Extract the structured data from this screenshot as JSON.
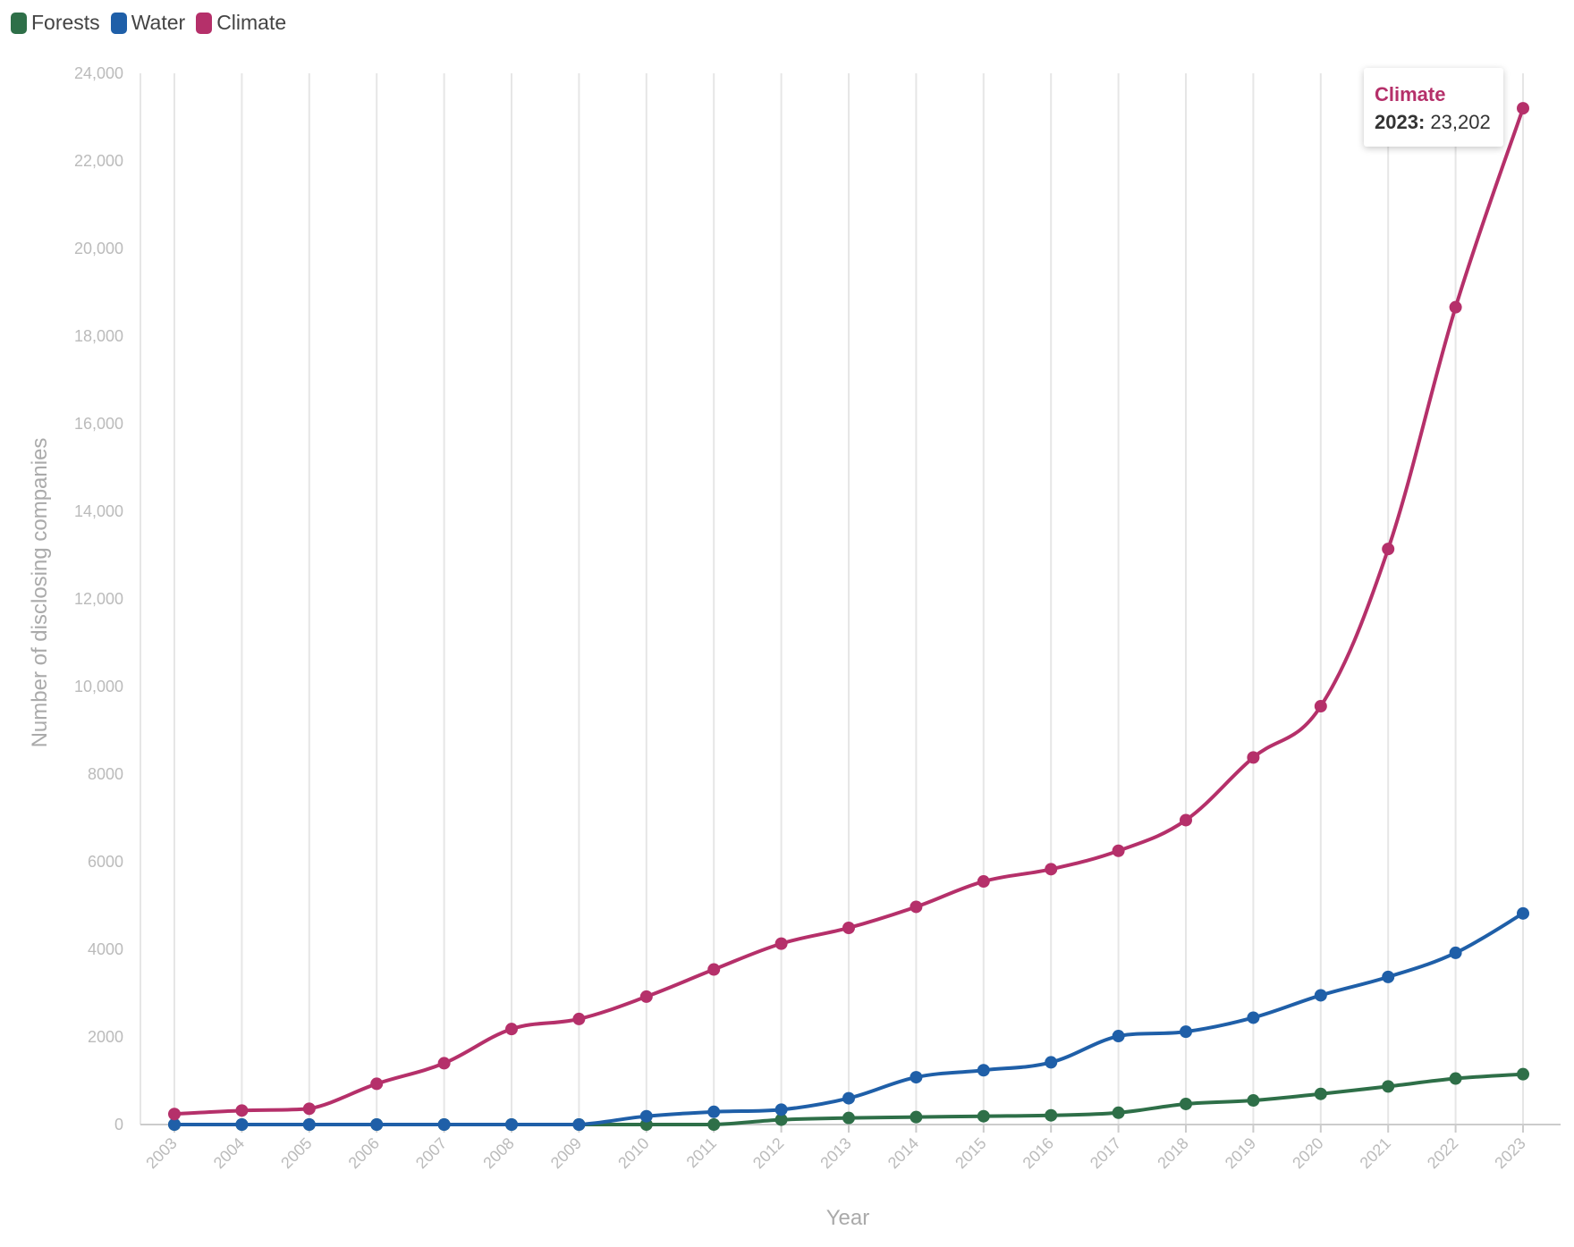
{
  "legend": [
    {
      "name": "Forests",
      "color": "#2e6f48"
    },
    {
      "name": "Water",
      "color": "#1f5fa8"
    },
    {
      "name": "Climate",
      "color": "#b5306a"
    }
  ],
  "tooltip": {
    "series": "Climate",
    "year": "2023:",
    "value": "23,202",
    "series_color": "#b5306a"
  },
  "chart_data": {
    "type": "line",
    "title": "",
    "xlabel": "Year",
    "ylabel": "Number of disclosing companies",
    "ylim": [
      0,
      24000
    ],
    "yticks": [
      0,
      2000,
      4000,
      6000,
      8000,
      10000,
      12000,
      14000,
      16000,
      18000,
      20000,
      22000,
      24000
    ],
    "ytick_labels": [
      "0",
      "2000",
      "4000",
      "6000",
      "8000",
      "10,000",
      "12,000",
      "14,000",
      "16,000",
      "18,000",
      "20,000",
      "22,000",
      "24,000"
    ],
    "x": [
      "2003",
      "2004",
      "2005",
      "2006",
      "2007",
      "2008",
      "2009",
      "2010",
      "2011",
      "2012",
      "2013",
      "2014",
      "2015",
      "2016",
      "2017",
      "2018",
      "2019",
      "2020",
      "2021",
      "2022",
      "2023"
    ],
    "grid": "vertical",
    "legend_position": "top-left",
    "series": [
      {
        "name": "Forests",
        "color": "#2e6f48",
        "values": [
          0,
          0,
          0,
          0,
          0,
          0,
          0,
          0,
          0,
          110,
          150,
          170,
          190,
          210,
          270,
          470,
          550,
          700,
          870,
          1050,
          1150
        ]
      },
      {
        "name": "Water",
        "color": "#1f5fa8",
        "values": [
          0,
          0,
          0,
          0,
          0,
          0,
          0,
          190,
          290,
          340,
          600,
          1080,
          1240,
          1420,
          2020,
          2120,
          2440,
          2950,
          3370,
          3920,
          4820
        ]
      },
      {
        "name": "Climate",
        "color": "#b5306a",
        "values": [
          240,
          320,
          360,
          930,
          1400,
          2180,
          2410,
          2920,
          3540,
          4130,
          4490,
          4970,
          5550,
          5830,
          6250,
          6950,
          8380,
          9550,
          13140,
          18660,
          23202
        ]
      }
    ]
  }
}
